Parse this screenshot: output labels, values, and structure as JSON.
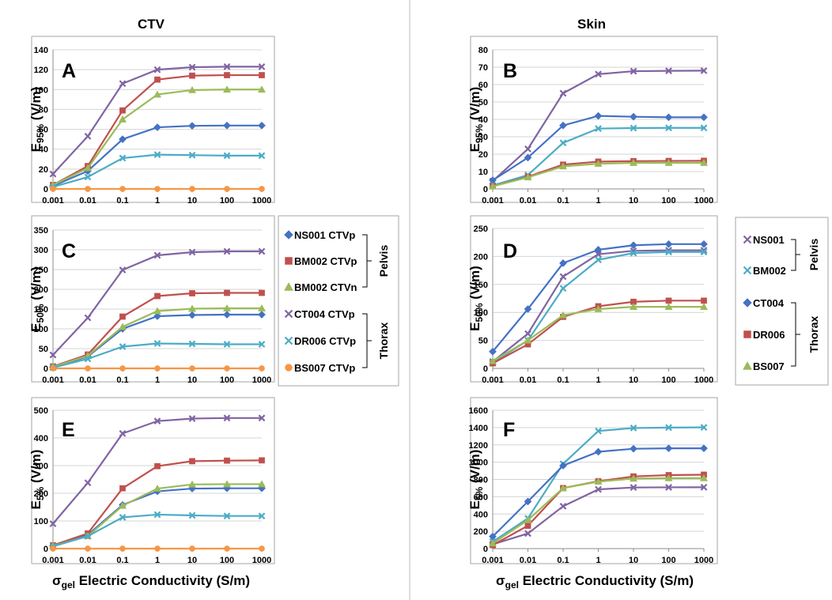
{
  "columns": {
    "left": "CTV",
    "right": "Skin"
  },
  "x_axis": {
    "title_symbol": "σ",
    "title_sub": "gel",
    "title_rest": " Electric Conductivity (S/m)",
    "ticks": [
      "0.001",
      "0.01",
      "0.1",
      "1",
      "10",
      "100",
      "1000"
    ]
  },
  "colors": {
    "NS001": "#4472c4",
    "BM002": "#c0504d",
    "BM002n": "#9bbb59",
    "CT004": "#8064a2",
    "DR006": "#4bacc6",
    "BS007": "#f79646",
    "skin_NS001": "#8064a2",
    "skin_BM002": "#4bacc6",
    "skin_CT004": "#4472c4",
    "skin_DR006": "#c0504d",
    "skin_BS007": "#9bbb59"
  },
  "legends": {
    "ctv": {
      "entries": [
        {
          "label": "NS001 CTVp",
          "marker": "diamond",
          "color": "#4472c4"
        },
        {
          "label": "BM002 CTVp",
          "marker": "square",
          "color": "#c0504d"
        },
        {
          "label": "BM002 CTVn",
          "marker": "triangle",
          "color": "#9bbb59"
        },
        {
          "label": "CT004 CTVp",
          "marker": "x",
          "color": "#8064a2"
        },
        {
          "label": "DR006 CTVp",
          "marker": "x",
          "color": "#4bacc6"
        },
        {
          "label": "BS007 CTVp",
          "marker": "circle",
          "color": "#f79646"
        }
      ],
      "groups": [
        "Pelvis",
        "Thorax"
      ]
    },
    "skin": {
      "entries": [
        {
          "label": "NS001",
          "marker": "x",
          "color": "#8064a2"
        },
        {
          "label": "BM002",
          "marker": "x",
          "color": "#4bacc6"
        },
        {
          "label": "CT004",
          "marker": "diamond",
          "color": "#4472c4"
        },
        {
          "label": "DR006",
          "marker": "square",
          "color": "#c0504d"
        },
        {
          "label": "BS007",
          "marker": "triangle",
          "color": "#9bbb59"
        }
      ],
      "groups": [
        "Pelvis",
        "Thorax"
      ]
    }
  },
  "chart_data": [
    {
      "panel": "A",
      "type": "line",
      "column": "CTV",
      "ylabel_main": "E",
      "ylabel_sub": "95%",
      "ylabel_unit": " (V/m)",
      "ylim": [
        0,
        140
      ],
      "yticks": [
        0,
        20,
        40,
        60,
        80,
        100,
        120,
        140
      ],
      "categories": [
        "0.001",
        "0.01",
        "0.1",
        "1",
        "10",
        "100",
        "1000"
      ],
      "series": [
        {
          "name": "NS001 CTVp",
          "marker": "diamond",
          "color": "#4472c4",
          "values": [
            3,
            18,
            50,
            62,
            63.5,
            63.8,
            63.8
          ]
        },
        {
          "name": "BM002 CTVp",
          "marker": "square",
          "color": "#c0504d",
          "values": [
            4,
            23,
            79,
            110,
            114,
            114.5,
            114.5
          ]
        },
        {
          "name": "BM002 CTVn",
          "marker": "triangle",
          "color": "#9bbb59",
          "values": [
            4,
            21,
            70,
            95,
            99.5,
            100,
            100
          ]
        },
        {
          "name": "CT004 CTVp",
          "marker": "x",
          "color": "#8064a2",
          "values": [
            15,
            53,
            106,
            120,
            122.5,
            123,
            123
          ]
        },
        {
          "name": "DR006 CTVp",
          "marker": "x",
          "color": "#4bacc6",
          "values": [
            2,
            12,
            31,
            34.5,
            34,
            33.5,
            33.5
          ]
        },
        {
          "name": "BS007 CTVp",
          "marker": "circle",
          "color": "#f79646",
          "values": [
            0,
            0,
            0,
            0,
            0,
            0,
            0
          ]
        }
      ]
    },
    {
      "panel": "B",
      "type": "line",
      "column": "Skin",
      "ylabel_main": "E",
      "ylabel_sub": "95%",
      "ylabel_unit": " (V/m)",
      "ylim": [
        0,
        80
      ],
      "yticks": [
        0,
        10,
        20,
        30,
        40,
        50,
        60,
        70,
        80
      ],
      "categories": [
        "0.001",
        "0.01",
        "0.1",
        "1",
        "10",
        "100",
        "1000"
      ],
      "series": [
        {
          "name": "NS001",
          "marker": "x",
          "color": "#8064a2",
          "values": [
            4.5,
            23,
            55,
            66,
            67.7,
            67.9,
            68
          ]
        },
        {
          "name": "BM002",
          "marker": "x",
          "color": "#4bacc6",
          "values": [
            2,
            8,
            26.5,
            34.7,
            35,
            35.1,
            35.1
          ]
        },
        {
          "name": "CT004",
          "marker": "diamond",
          "color": "#4472c4",
          "values": [
            5,
            18,
            36.5,
            42,
            41.5,
            41.2,
            41.2
          ]
        },
        {
          "name": "DR006",
          "marker": "square",
          "color": "#c0504d",
          "values": [
            1.5,
            7,
            14,
            15.7,
            16,
            16.1,
            16.2
          ]
        },
        {
          "name": "BS007",
          "marker": "triangle",
          "color": "#9bbb59",
          "values": [
            1.5,
            6.7,
            13,
            14.5,
            15,
            15,
            15
          ]
        }
      ]
    },
    {
      "panel": "C",
      "type": "line",
      "column": "CTV",
      "ylabel_main": "E",
      "ylabel_sub": "50%",
      "ylabel_unit": " (V/m)",
      "ylim": [
        0,
        350
      ],
      "yticks": [
        0,
        50,
        100,
        150,
        200,
        250,
        300,
        350
      ],
      "categories": [
        "0.001",
        "0.01",
        "0.1",
        "1",
        "10",
        "100",
        "1000"
      ],
      "series": [
        {
          "name": "NS001 CTVp",
          "marker": "diamond",
          "color": "#4472c4",
          "values": [
            3,
            30,
            100,
            132,
            135,
            136,
            136
          ]
        },
        {
          "name": "BM002 CTVp",
          "marker": "square",
          "color": "#c0504d",
          "values": [
            5,
            35,
            131,
            183,
            190,
            191,
            191
          ]
        },
        {
          "name": "BM002 CTVn",
          "marker": "triangle",
          "color": "#9bbb59",
          "values": [
            4,
            32,
            105,
            145,
            151,
            152,
            152
          ]
        },
        {
          "name": "CT004 CTVp",
          "marker": "x",
          "color": "#8064a2",
          "values": [
            34,
            128,
            249,
            286,
            294,
            296,
            296
          ]
        },
        {
          "name": "DR006 CTVp",
          "marker": "x",
          "color": "#4bacc6",
          "values": [
            2,
            24,
            55,
            63,
            62,
            61,
            61
          ]
        },
        {
          "name": "BS007 CTVp",
          "marker": "circle",
          "color": "#f79646",
          "values": [
            0,
            0,
            0,
            0,
            0,
            0,
            0
          ]
        }
      ]
    },
    {
      "panel": "D",
      "type": "line",
      "column": "Skin",
      "ylabel_main": "E",
      "ylabel_sub": "50%",
      "ylabel_unit": " (V/m)",
      "ylim": [
        0,
        250
      ],
      "yticks": [
        0,
        50,
        100,
        150,
        200,
        250
      ],
      "categories": [
        "0.001",
        "0.01",
        "0.1",
        "1",
        "10",
        "100",
        "1000"
      ],
      "series": [
        {
          "name": "NS001",
          "marker": "x",
          "color": "#8064a2",
          "values": [
            12,
            62,
            164,
            204,
            210,
            211,
            211
          ]
        },
        {
          "name": "BM002",
          "marker": "x",
          "color": "#4bacc6",
          "values": [
            10,
            50,
            143,
            194,
            206,
            208,
            208
          ]
        },
        {
          "name": "CT004",
          "marker": "diamond",
          "color": "#4472c4",
          "values": [
            30,
            106,
            188,
            212,
            220,
            222,
            222
          ]
        },
        {
          "name": "DR006",
          "marker": "square",
          "color": "#c0504d",
          "values": [
            9,
            43,
            92,
            111,
            119,
            121,
            121
          ]
        },
        {
          "name": "BS007",
          "marker": "triangle",
          "color": "#9bbb59",
          "values": [
            13,
            50,
            95,
            106,
            110,
            110,
            110
          ]
        }
      ]
    },
    {
      "panel": "E",
      "type": "line",
      "column": "CTV",
      "ylabel_main": "E",
      "ylabel_sub": "5%",
      "ylabel_unit": " (V/m)",
      "ylim": [
        0,
        500
      ],
      "yticks": [
        0,
        100,
        200,
        300,
        400,
        500
      ],
      "categories": [
        "0.001",
        "0.01",
        "0.1",
        "1",
        "10",
        "100",
        "1000"
      ],
      "series": [
        {
          "name": "NS001 CTVp",
          "marker": "diamond",
          "color": "#4472c4",
          "values": [
            10,
            50,
            158,
            207,
            217,
            218,
            218
          ]
        },
        {
          "name": "BM002 CTVp",
          "marker": "square",
          "color": "#c0504d",
          "values": [
            12,
            55,
            218,
            298,
            316,
            318,
            319
          ]
        },
        {
          "name": "BM002 CTVn",
          "marker": "triangle",
          "color": "#9bbb59",
          "values": [
            10,
            45,
            155,
            217,
            232,
            233,
            233
          ]
        },
        {
          "name": "CT004 CTVp",
          "marker": "x",
          "color": "#8064a2",
          "values": [
            90,
            238,
            416,
            461,
            470,
            472,
            472
          ]
        },
        {
          "name": "DR006 CTVp",
          "marker": "x",
          "color": "#4bacc6",
          "values": [
            8,
            45,
            113,
            123,
            120,
            118,
            118
          ]
        },
        {
          "name": "BS007 CTVp",
          "marker": "circle",
          "color": "#f79646",
          "values": [
            0,
            0,
            0,
            0,
            0,
            0,
            0
          ]
        }
      ]
    },
    {
      "panel": "F",
      "type": "line",
      "column": "Skin",
      "ylabel_main": "E",
      "ylabel_sub": "5%",
      "ylabel_unit": " (V/m)",
      "ylim": [
        0,
        1600
      ],
      "yticks": [
        0,
        200,
        400,
        600,
        800,
        1000,
        1200,
        1400,
        1600
      ],
      "categories": [
        "0.001",
        "0.01",
        "0.1",
        "1",
        "10",
        "100",
        "1000"
      ],
      "series": [
        {
          "name": "NS001",
          "marker": "x",
          "color": "#8064a2",
          "values": [
            50,
            175,
            490,
            685,
            707,
            709,
            710
          ]
        },
        {
          "name": "BM002",
          "marker": "x",
          "color": "#4bacc6",
          "values": [
            80,
            350,
            980,
            1360,
            1395,
            1400,
            1402
          ]
        },
        {
          "name": "CT004",
          "marker": "diamond",
          "color": "#4472c4",
          "values": [
            140,
            545,
            960,
            1120,
            1155,
            1160,
            1160
          ]
        },
        {
          "name": "DR006",
          "marker": "square",
          "color": "#c0504d",
          "values": [
            40,
            265,
            700,
            780,
            835,
            850,
            855
          ]
        },
        {
          "name": "BS007",
          "marker": "triangle",
          "color": "#9bbb59",
          "values": [
            60,
            330,
            700,
            775,
            810,
            815,
            815
          ]
        }
      ]
    }
  ]
}
